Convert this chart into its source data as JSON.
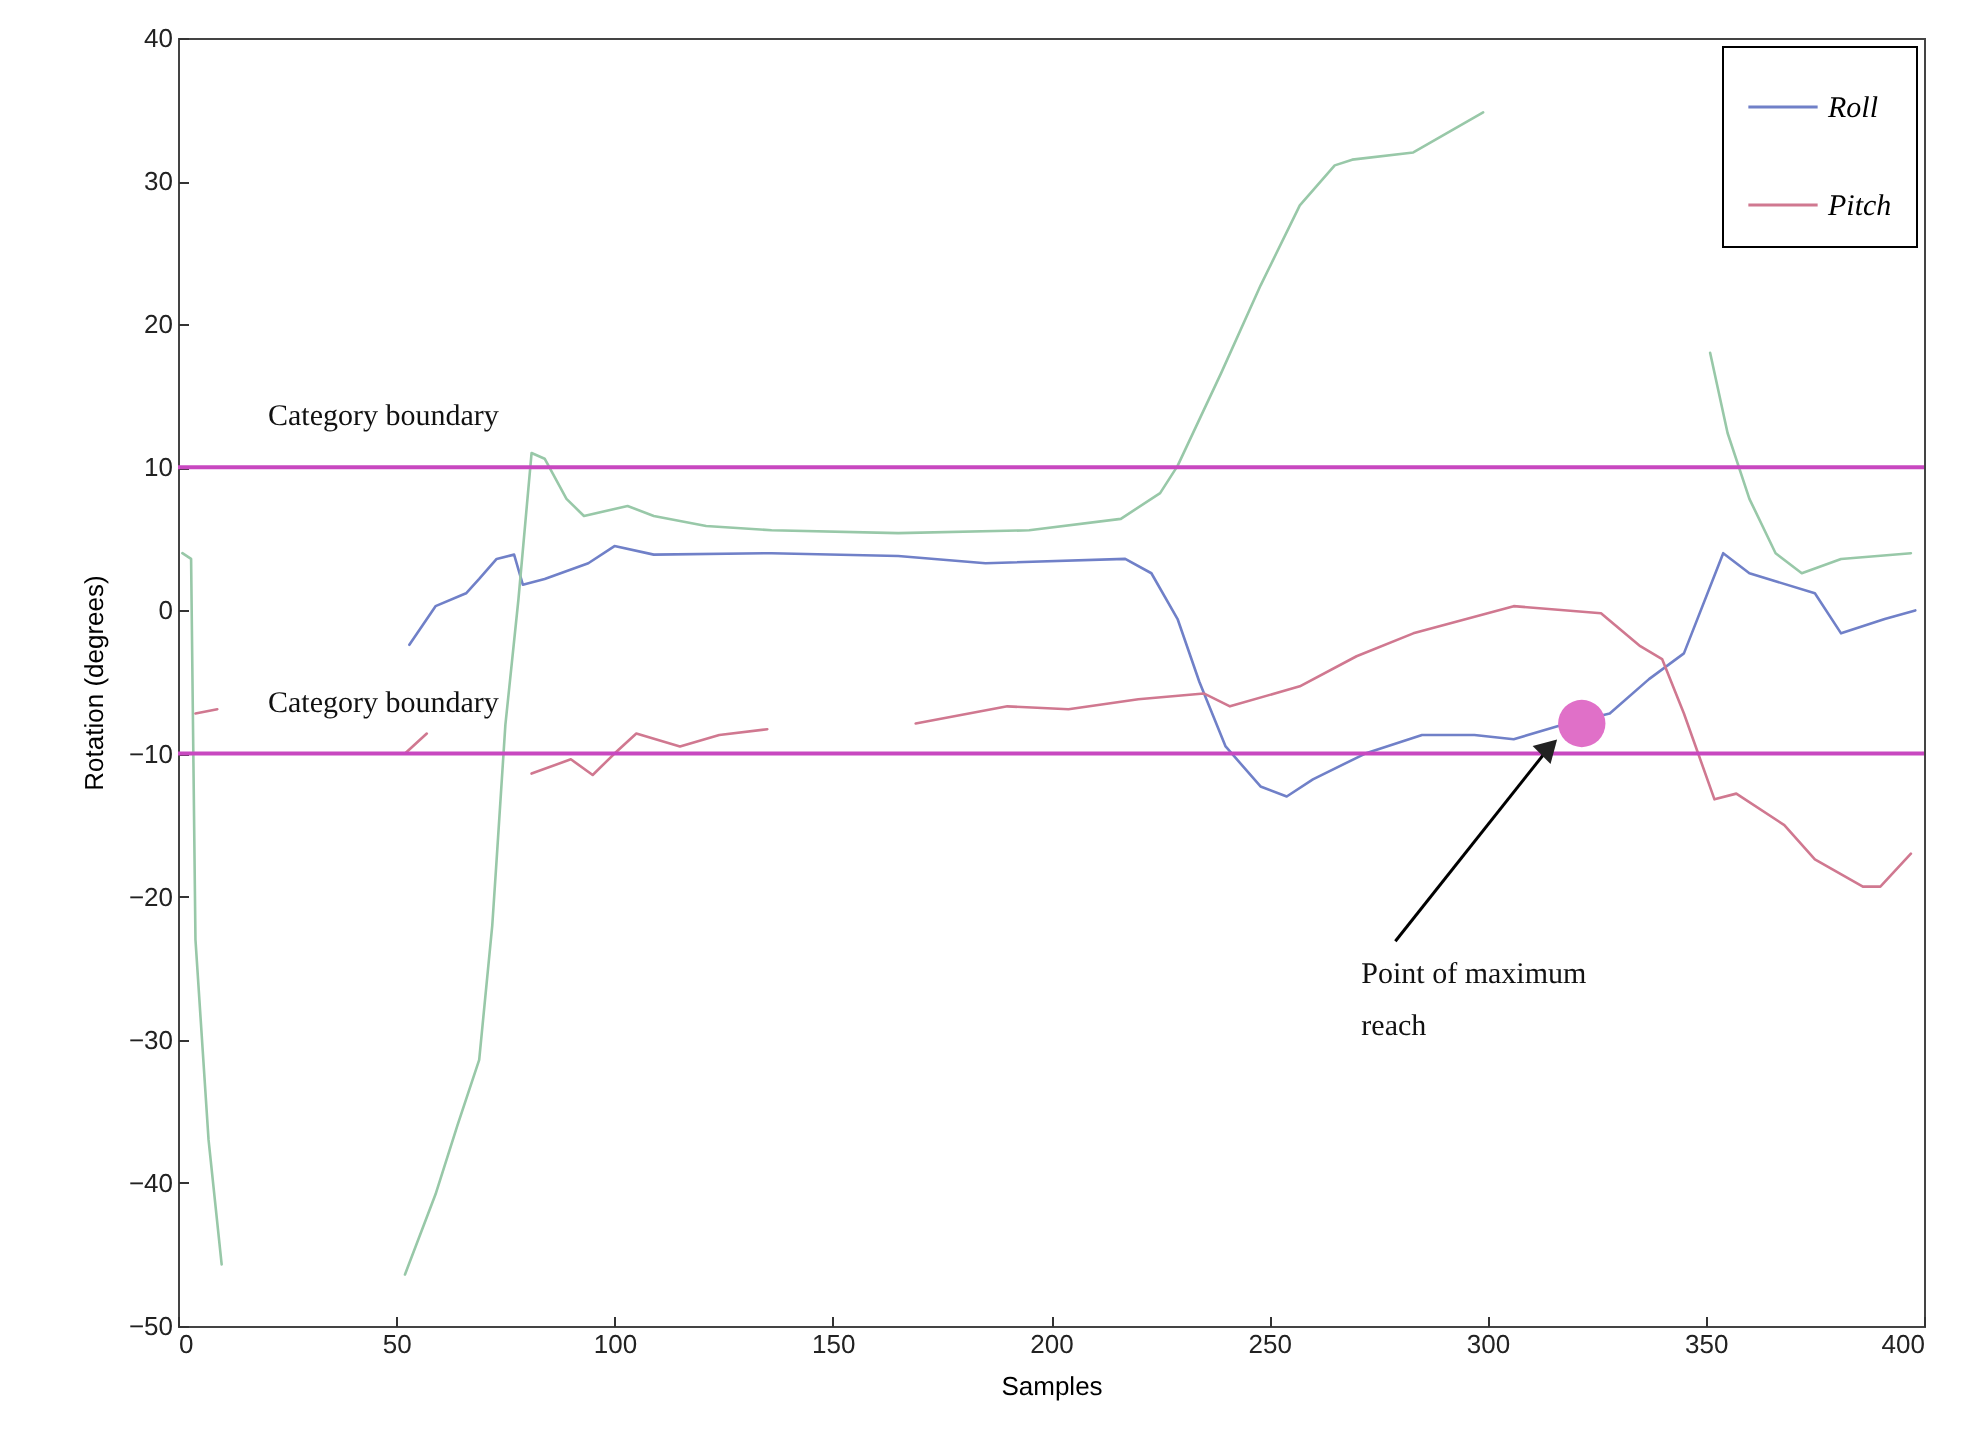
{
  "chart_data": {
    "type": "line",
    "xlabel": "Samples",
    "ylabel": "Rotation (degrees)",
    "xlim": [
      0,
      400
    ],
    "ylim": [
      -50,
      40
    ],
    "xticks": [
      0,
      50,
      100,
      150,
      200,
      250,
      300,
      350,
      400
    ],
    "yticks": [
      -50,
      -40,
      -30,
      -20,
      -10,
      0,
      10,
      20,
      30,
      40
    ],
    "grid": false,
    "legend": "top right",
    "marker": "none",
    "series": [
      {
        "name": "Roll",
        "color": "#7080c8",
        "x": [
          53,
          59,
          66,
          69,
          73,
          77,
          79,
          84,
          94,
          100,
          109,
          136,
          165,
          185,
          217,
          223,
          229,
          234,
          240,
          248,
          254,
          260,
          272,
          285,
          297,
          306,
          317,
          328,
          337,
          345,
          354,
          360,
          375,
          381,
          391,
          398
        ],
        "values": [
          -2.4,
          0.3,
          1.2,
          2.2,
          3.6,
          3.9,
          1.8,
          2.2,
          3.3,
          4.5,
          3.9,
          4,
          3.8,
          3.3,
          3.6,
          2.6,
          -0.6,
          -5,
          -9.5,
          -12.3,
          -13,
          -11.8,
          -10,
          -8.7,
          -8.7,
          -9,
          -8,
          -7.2,
          -4.8,
          -3,
          4,
          2.6,
          1.2,
          -1.6,
          -0.6,
          0
        ]
      },
      {
        "name": "Pitch",
        "color": "#d07890",
        "x": [
          4,
          9,
          30,
          52,
          57,
          66,
          81,
          90,
          95,
          100,
          105,
          115,
          124,
          135,
          150,
          169,
          190,
          204,
          220,
          235,
          241,
          257,
          270,
          283,
          306,
          326,
          335,
          340,
          345,
          352,
          357,
          368,
          375,
          386,
          390,
          397
        ],
        "values": [
          -7.2,
          -6.9,
          null,
          -10,
          -8.6,
          null,
          -11.4,
          -10.4,
          -11.5,
          -10,
          -8.6,
          -9.5,
          -8.7,
          -8.3,
          null,
          -7.9,
          -6.7,
          -6.9,
          -6.2,
          -5.8,
          -6.7,
          -5.3,
          -3.2,
          -1.6,
          0.3,
          -0.2,
          -2.5,
          -3.4,
          -7.2,
          -13.2,
          -12.8,
          -15,
          -17.4,
          -19.3,
          -19.3,
          -17
        ]
      },
      {
        "color": "#98c8a8",
        "x": [
          1,
          3,
          4,
          7,
          10,
          30,
          52,
          59,
          64,
          69,
          72,
          73,
          75,
          78,
          81,
          84,
          89,
          93,
          103,
          109,
          121,
          136,
          165,
          195,
          216,
          225,
          229,
          239,
          248,
          257,
          265,
          269,
          283,
          299,
          325,
          351,
          355,
          360,
          366,
          372,
          381,
          397
        ],
        "values": [
          4,
          3.6,
          -23,
          -37,
          -45.7,
          null,
          -46.4,
          -40.8,
          -36,
          -31.4,
          -22,
          -17.4,
          -8,
          0.8,
          11,
          10.6,
          7.8,
          6.6,
          7.3,
          6.6,
          5.9,
          5.6,
          5.4,
          5.6,
          6.4,
          8.2,
          10.1,
          16.6,
          22.7,
          28.3,
          31.1,
          31.5,
          32,
          34.8,
          null,
          18,
          12.4,
          7.8,
          4,
          2.6,
          3.6,
          4
        ]
      },
      {
        "type": "scatter",
        "marker": "circle",
        "color": "#e070c8",
        "x": [
          321.6
        ],
        "values": [
          -7.9
        ]
      }
    ],
    "ref_lines": [
      {
        "axis": "y",
        "value": 10,
        "label": "Category boundary",
        "color": "#c848c0"
      },
      {
        "axis": "y",
        "value": -10,
        "label": "Category boundary",
        "color": "#c848c0"
      }
    ],
    "annotations": [
      {
        "text": "Point of maximum reach",
        "x": 316,
        "y": -9
      }
    ]
  }
}
